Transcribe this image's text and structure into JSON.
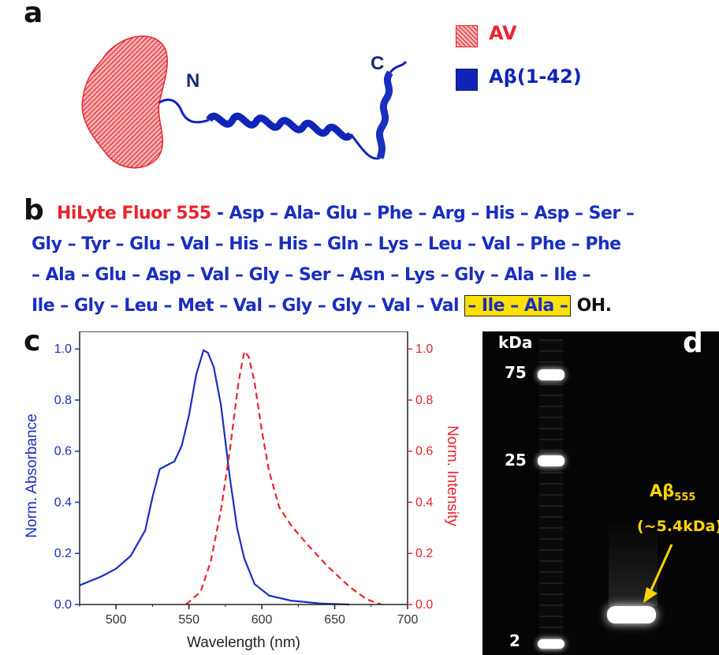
{
  "panels": {
    "a": "a",
    "b": "b",
    "c": "c",
    "d": "d"
  },
  "panel_a": {
    "n_label": "N",
    "c_label": "C",
    "legend": [
      {
        "label": "AV",
        "color": "#e8242e"
      },
      {
        "label": "Aβ(1-42)",
        "color": "#1024b8"
      }
    ]
  },
  "panel_b": {
    "line1_prefix": "HiLyte Fluor 555",
    "line1_rest": " - Asp – Ala- Glu – Phe – Arg – His – Asp – Ser –",
    "line2": "Gly – Tyr – Glu – Val – His – His – Gln – Lys – Leu – Val – Phe – Phe",
    "line3": "– Ala – Glu – Asp – Val – Gly – Ser – Asn – Lys – Gly – Ala – Ile –",
    "line4_main": "Ile – Gly – Leu – Met – Val – Gly – Gly – Val – Val ",
    "line4_highlight": "– Ile – Ala –",
    "line4_end": " OH."
  },
  "panel_d": {
    "kda_label": "kDa",
    "ladder_labels": [
      "75",
      "25",
      "2"
    ],
    "band_label": "Aβ",
    "band_label_sub": "555",
    "band_size": "(~5.4kDa)"
  },
  "chart_data": {
    "type": "line",
    "xlabel": "Wavelength (nm)",
    "ylabel_left": "Norm. Absorbance",
    "ylabel_right": "Norm. Intensity",
    "xlim": [
      475,
      700
    ],
    "ylim": [
      0,
      1.05
    ],
    "x_ticks": [
      500,
      550,
      600,
      650,
      700
    ],
    "y_ticks": [
      0.0,
      0.2,
      0.4,
      0.6,
      0.8,
      1.0
    ],
    "y_tick_labels": [
      "0.0",
      "0.2",
      "0.4",
      "0.6",
      "0.8",
      "1.0"
    ],
    "series": [
      {
        "style": "solid",
        "color": "#1a2ec0",
        "axis": "left",
        "points": [
          [
            475,
            0.075
          ],
          [
            490,
            0.11
          ],
          [
            500,
            0.14
          ],
          [
            510,
            0.19
          ],
          [
            520,
            0.29
          ],
          [
            525,
            0.42
          ],
          [
            530,
            0.53
          ],
          [
            535,
            0.545
          ],
          [
            540,
            0.56
          ],
          [
            545,
            0.62
          ],
          [
            550,
            0.74
          ],
          [
            555,
            0.9
          ],
          [
            560,
            0.995
          ],
          [
            563,
            0.985
          ],
          [
            567,
            0.93
          ],
          [
            572,
            0.78
          ],
          [
            578,
            0.5
          ],
          [
            583,
            0.3
          ],
          [
            588,
            0.18
          ],
          [
            595,
            0.08
          ],
          [
            605,
            0.035
          ],
          [
            620,
            0.015
          ],
          [
            640,
            0.004
          ],
          [
            660,
            0.0
          ]
        ]
      },
      {
        "style": "dashed",
        "color": "#e8242e",
        "axis": "right",
        "points": [
          [
            548,
            0.0
          ],
          [
            558,
            0.05
          ],
          [
            565,
            0.17
          ],
          [
            572,
            0.37
          ],
          [
            578,
            0.6
          ],
          [
            584,
            0.87
          ],
          [
            588,
            0.99
          ],
          [
            591,
            0.97
          ],
          [
            595,
            0.87
          ],
          [
            600,
            0.68
          ],
          [
            605,
            0.52
          ],
          [
            612,
            0.38
          ],
          [
            620,
            0.31
          ],
          [
            632,
            0.23
          ],
          [
            645,
            0.15
          ],
          [
            660,
            0.07
          ],
          [
            672,
            0.02
          ],
          [
            682,
            0.0
          ]
        ]
      }
    ]
  }
}
